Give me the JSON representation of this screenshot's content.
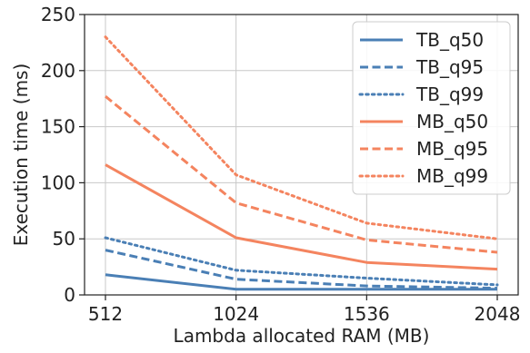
{
  "chart_data": {
    "type": "line",
    "title": "",
    "xlabel": "Lambda allocated RAM (MB)",
    "ylabel": "Execution time (ms)",
    "x": [
      512,
      1024,
      1536,
      2048
    ],
    "x_tick_labels": [
      "512",
      "1024",
      "1536",
      "2048"
    ],
    "xlim": [
      512,
      2048
    ],
    "ylim": [
      0,
      250
    ],
    "y_ticks": [
      0,
      50,
      100,
      150,
      200,
      250
    ],
    "y_tick_labels": [
      "0",
      "50",
      "100",
      "150",
      "200",
      "250"
    ],
    "grid": true,
    "legend_position": "top-right",
    "series": [
      {
        "name": "TB_q50",
        "values": [
          18,
          5,
          5,
          5
        ],
        "color": "#4a7fb5",
        "style": "solid"
      },
      {
        "name": "TB_q95",
        "values": [
          40,
          14,
          8,
          6
        ],
        "color": "#4a7fb5",
        "style": "dashed"
      },
      {
        "name": "TB_q99",
        "values": [
          51,
          22,
          15,
          9
        ],
        "color": "#4a7fb5",
        "style": "dotted"
      },
      {
        "name": "MB_q50",
        "values": [
          116,
          51,
          29,
          23
        ],
        "color": "#f4845f",
        "style": "solid"
      },
      {
        "name": "MB_q95",
        "values": [
          177,
          82,
          49,
          38
        ],
        "color": "#f4845f",
        "style": "dashed"
      },
      {
        "name": "MB_q99",
        "values": [
          230,
          107,
          64,
          50
        ],
        "color": "#f4845f",
        "style": "dotted"
      }
    ]
  }
}
